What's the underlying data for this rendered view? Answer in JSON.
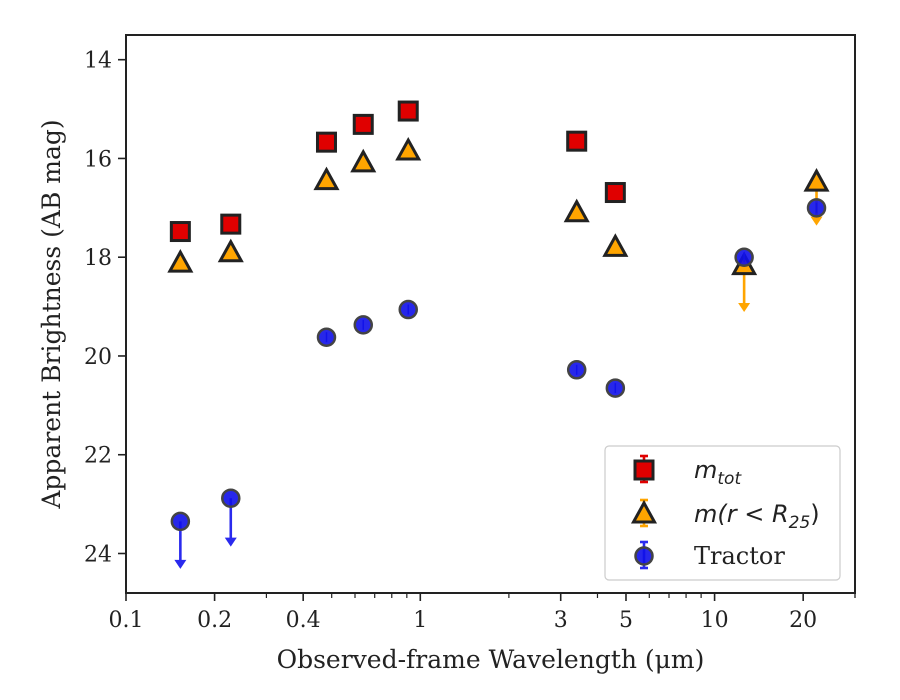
{
  "chart_data": {
    "type": "scatter",
    "title": "",
    "xlabel": "Observed-frame Wavelength (μm)",
    "ylabel": "Apparent Brightness (AB mag)",
    "x_scale": "log",
    "xlim": [
      0.1,
      30
    ],
    "ylim": [
      24.8,
      13.5
    ],
    "y_inverted": true,
    "x_ticks": [
      {
        "value": 0.1,
        "label": "0.1"
      },
      {
        "value": 0.2,
        "label": "0.2"
      },
      {
        "value": 0.4,
        "label": "0.4"
      },
      {
        "value": 1,
        "label": "1"
      },
      {
        "value": 3,
        "label": "3"
      },
      {
        "value": 5,
        "label": "5"
      },
      {
        "value": 10,
        "label": "10"
      },
      {
        "value": 20,
        "label": "20"
      }
    ],
    "y_ticks": [
      {
        "value": 14,
        "label": "14"
      },
      {
        "value": 16,
        "label": "16"
      },
      {
        "value": 18,
        "label": "18"
      },
      {
        "value": 20,
        "label": "20"
      },
      {
        "value": 22,
        "label": "22"
      },
      {
        "value": 24,
        "label": "24"
      }
    ],
    "grid": false,
    "legend_position": "bottom-right",
    "series": [
      {
        "name": "m_tot",
        "legend_main": "m",
        "legend_sub": "tot",
        "marker": "square",
        "color": "#e00000",
        "errcolor": "#e00000",
        "points": [
          {
            "x": 0.153,
            "y": 17.48
          },
          {
            "x": 0.227,
            "y": 17.33
          },
          {
            "x": 0.48,
            "y": 15.67
          },
          {
            "x": 0.64,
            "y": 15.31
          },
          {
            "x": 0.91,
            "y": 15.04
          },
          {
            "x": 3.4,
            "y": 15.65
          },
          {
            "x": 4.6,
            "y": 16.69
          }
        ]
      },
      {
        "name": "m(r < R25)",
        "legend_main": "m(r < R",
        "legend_sub": "25",
        "legend_end": ")",
        "marker": "triangle",
        "color": "#ffa500",
        "errcolor": "#ffa500",
        "points": [
          {
            "x": 0.153,
            "y": 18.12
          },
          {
            "x": 0.227,
            "y": 17.91
          },
          {
            "x": 0.48,
            "y": 16.45
          },
          {
            "x": 0.64,
            "y": 16.09
          },
          {
            "x": 0.91,
            "y": 15.85
          },
          {
            "x": 3.4,
            "y": 17.1
          },
          {
            "x": 4.6,
            "y": 17.8
          },
          {
            "x": 12.6,
            "y": 18.17,
            "upper_limit": true,
            "arrow_to": 19.05
          },
          {
            "x": 22.2,
            "y": 16.48,
            "upper_limit": true,
            "arrow_to": 17.3
          }
        ]
      },
      {
        "name": "Tractor",
        "legend_main": "Tractor",
        "marker": "circle",
        "color": "#1010e8",
        "errcolor": "#2a2aee",
        "points": [
          {
            "x": 0.153,
            "y": 23.35,
            "upper_limit": true,
            "arrow_to": 24.25
          },
          {
            "x": 0.227,
            "y": 22.88,
            "upper_limit": true,
            "arrow_to": 23.8
          },
          {
            "x": 0.48,
            "y": 19.62
          },
          {
            "x": 0.64,
            "y": 19.37
          },
          {
            "x": 0.91,
            "y": 19.06
          },
          {
            "x": 3.4,
            "y": 20.28
          },
          {
            "x": 4.6,
            "y": 20.65
          },
          {
            "x": 12.6,
            "y": 18.0
          },
          {
            "x": 22.2,
            "y": 17.0
          }
        ]
      }
    ]
  }
}
